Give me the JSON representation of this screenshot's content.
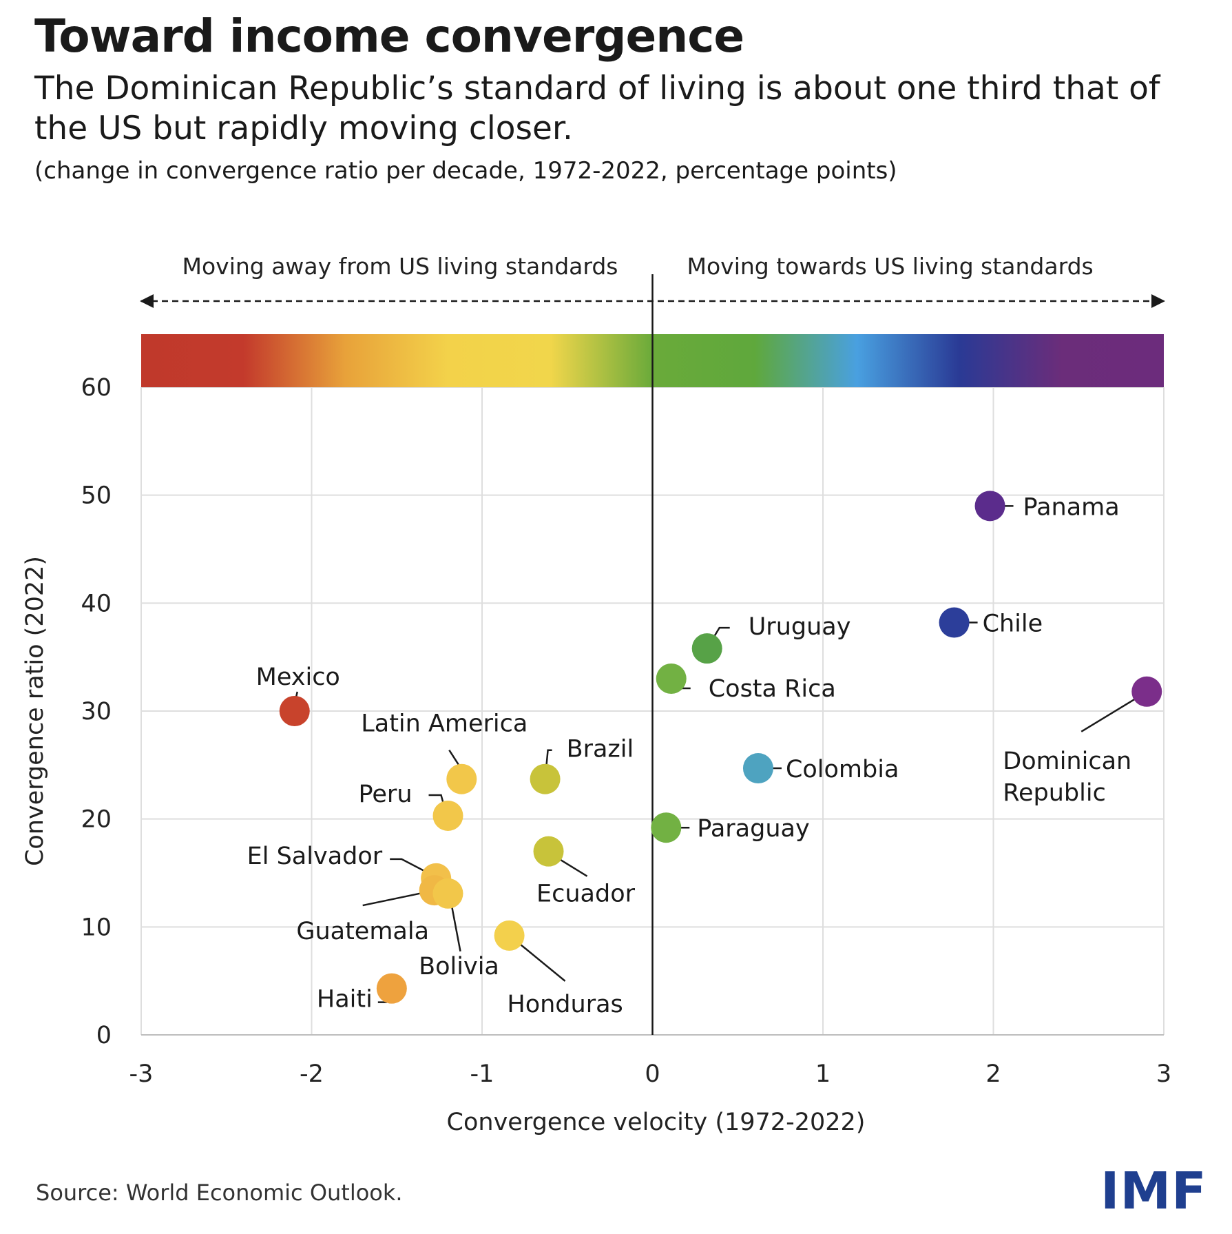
{
  "header": {
    "title": "Toward income convergence",
    "subtitle": "The Dominican Republic’s standard of living is about one third that of the US but rapidly moving closer.",
    "note": "(change in convergence ratio per decade, 1972-2022, percentage points)"
  },
  "direction": {
    "left": "Moving away from US living standards",
    "right": "Moving towards US living standards"
  },
  "colors": {
    "gradient": [
      "#c0392b",
      "#c33a2c",
      "#e8a23a",
      "#f3d24a",
      "#f1d64b",
      "#6aaa3a",
      "#5fa83c",
      "#49a0e0",
      "#2a3a95",
      "#6b2d7a",
      "#6c2c7c"
    ]
  },
  "chart_data": {
    "type": "scatter",
    "xlabel": "Convergence velocity (1972-2022)",
    "ylabel": "Convergence ratio (2022)",
    "xlim": [
      -3,
      3
    ],
    "ylim": [
      0,
      65
    ],
    "xticks": [
      -3,
      -2,
      -1,
      0,
      1,
      2,
      3
    ],
    "yticks": [
      0,
      10,
      20,
      30,
      40,
      50,
      60
    ],
    "grid": true,
    "points": [
      {
        "name": "Mexico",
        "x": -2.1,
        "y": 30.0,
        "color": "#c8432c"
      },
      {
        "name": "Latin America",
        "x": -1.12,
        "y": 23.7,
        "color": "#f2c74a"
      },
      {
        "name": "Brazil",
        "x": -0.63,
        "y": 23.7,
        "color": "#c8c33a"
      },
      {
        "name": "Peru",
        "x": -1.2,
        "y": 20.3,
        "color": "#f2c74a"
      },
      {
        "name": "Ecuador",
        "x": -0.61,
        "y": 17.0,
        "color": "#c8c33a"
      },
      {
        "name": "El Salvador",
        "x": -1.27,
        "y": 14.5,
        "color": "#f2c04a"
      },
      {
        "name": "Guatemala",
        "x": -1.28,
        "y": 13.4,
        "color": "#f0b845"
      },
      {
        "name": "Bolivia",
        "x": -1.2,
        "y": 13.1,
        "color": "#f2c74a"
      },
      {
        "name": "Honduras",
        "x": -0.84,
        "y": 9.2,
        "color": "#f3d04c"
      },
      {
        "name": "Haiti",
        "x": -1.53,
        "y": 4.3,
        "color": "#eea23e"
      },
      {
        "name": "Uruguay",
        "x": 0.32,
        "y": 35.8,
        "color": "#57a247"
      },
      {
        "name": "Costa Rica",
        "x": 0.11,
        "y": 33.0,
        "color": "#72b143"
      },
      {
        "name": "Paraguay",
        "x": 0.08,
        "y": 19.2,
        "color": "#72b143"
      },
      {
        "name": "Colombia",
        "x": 0.62,
        "y": 24.7,
        "color": "#4ea3c0"
      },
      {
        "name": "Panama",
        "x": 1.98,
        "y": 49.0,
        "color": "#5b2c8c"
      },
      {
        "name": "Chile",
        "x": 1.77,
        "y": 38.2,
        "color": "#2c3e9a"
      },
      {
        "name": "Dominican Republic",
        "x": 2.9,
        "y": 31.8,
        "color": "#7b2e8a"
      }
    ]
  },
  "footer": {
    "source": "Source: World Economic Outlook.",
    "logo": "IMF"
  }
}
